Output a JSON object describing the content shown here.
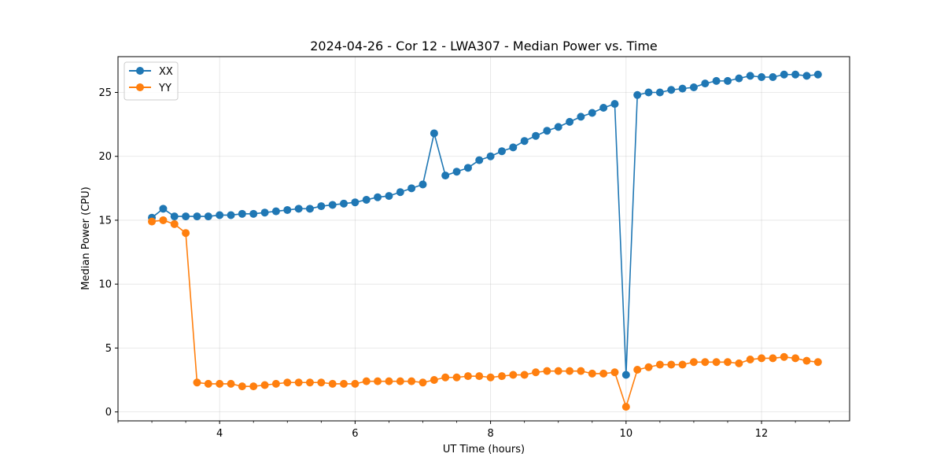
{
  "chart_data": {
    "type": "line",
    "title": "2024-04-26 - Cor 12 - LWA307 - Median Power vs. Time",
    "xlabel": "UT Time (hours)",
    "ylabel": "Median Power (CPU)",
    "xlim": [
      2.5,
      13.3
    ],
    "ylim": [
      -0.7,
      27.8
    ],
    "xticks": [
      4,
      6,
      8,
      10,
      12
    ],
    "yticks": [
      0,
      5,
      10,
      15,
      20,
      25
    ],
    "grid": true,
    "legend_position": "top-left",
    "x": [
      3.0,
      3.167,
      3.333,
      3.5,
      3.667,
      3.833,
      4.0,
      4.167,
      4.333,
      4.5,
      4.667,
      4.833,
      5.0,
      5.167,
      5.333,
      5.5,
      5.667,
      5.833,
      6.0,
      6.167,
      6.333,
      6.5,
      6.667,
      6.833,
      7.0,
      7.167,
      7.333,
      7.5,
      7.667,
      7.833,
      8.0,
      8.167,
      8.333,
      8.5,
      8.667,
      8.833,
      9.0,
      9.167,
      9.333,
      9.5,
      9.667,
      9.833,
      10.0,
      10.167,
      10.333,
      10.5,
      10.667,
      10.833,
      11.0,
      11.167,
      11.333,
      11.5,
      11.667,
      11.833,
      12.0,
      12.167,
      12.333,
      12.5,
      12.667,
      12.833
    ],
    "series": [
      {
        "name": "XX",
        "color": "#1f77b4",
        "values": [
          15.2,
          15.9,
          15.3,
          15.3,
          15.3,
          15.3,
          15.4,
          15.4,
          15.5,
          15.5,
          15.6,
          15.7,
          15.8,
          15.9,
          15.9,
          16.1,
          16.2,
          16.3,
          16.4,
          16.6,
          16.8,
          16.9,
          17.2,
          17.5,
          17.8,
          21.8,
          18.5,
          18.8,
          19.1,
          19.7,
          20.0,
          20.4,
          20.7,
          21.2,
          21.6,
          22.0,
          22.3,
          22.7,
          23.1,
          23.4,
          23.8,
          24.1,
          2.9,
          24.8,
          25.0,
          25.0,
          25.2,
          25.3,
          25.4,
          25.7,
          25.9,
          25.9,
          26.1,
          26.3,
          26.2,
          26.2,
          26.4,
          26.4,
          26.3,
          26.4
        ]
      },
      {
        "name": "YY",
        "color": "#ff7f0e",
        "values": [
          14.9,
          15.0,
          14.7,
          14.0,
          2.3,
          2.2,
          2.2,
          2.2,
          2.0,
          2.0,
          2.1,
          2.2,
          2.3,
          2.3,
          2.3,
          2.3,
          2.2,
          2.2,
          2.2,
          2.4,
          2.4,
          2.4,
          2.4,
          2.4,
          2.3,
          2.5,
          2.7,
          2.7,
          2.8,
          2.8,
          2.7,
          2.8,
          2.9,
          2.9,
          3.1,
          3.2,
          3.2,
          3.2,
          3.2,
          3.0,
          3.0,
          3.1,
          0.4,
          3.3,
          3.5,
          3.7,
          3.7,
          3.7,
          3.9,
          3.9,
          3.9,
          3.9,
          3.8,
          4.1,
          4.2,
          4.2,
          4.3,
          4.2,
          4.0,
          3.9
        ]
      }
    ]
  }
}
